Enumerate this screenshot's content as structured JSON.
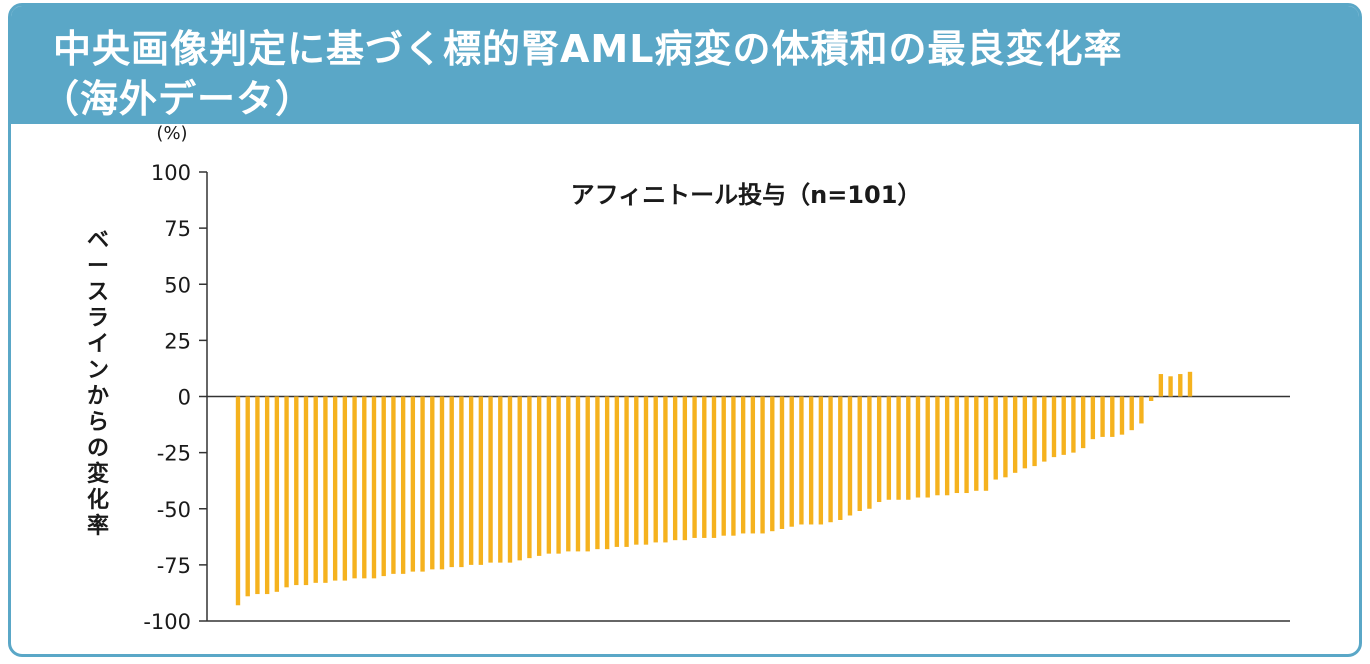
{
  "header": {
    "title_line1": "中央画像判定に基づく標的腎AML病変の体積和の最良変化率",
    "title_line2": "（海外データ）"
  },
  "colors": {
    "frame": "#5aa7c7",
    "bar": "#f5b21e",
    "axis": "#333333"
  },
  "chart_data": {
    "type": "bar",
    "title": "アフィニトール投与（n=101）",
    "ylabel": "ベースラインからの変化率",
    "yunit": "(%)",
    "ylim": [
      -100,
      100
    ],
    "yticks": [
      100,
      75,
      50,
      25,
      0,
      -25,
      -50,
      -75,
      -100
    ],
    "ytick_labels": [
      "100",
      "75",
      "50",
      "25",
      "0",
      "-25",
      "-50",
      "-75",
      "-100"
    ],
    "grid": false,
    "values": [
      -93,
      -89,
      -88,
      -88,
      -87,
      -85,
      -84,
      -84,
      -83,
      -83,
      -82,
      -82,
      -81,
      -81,
      -81,
      -80,
      -79,
      -79,
      -78,
      -78,
      -77,
      -77,
      -76,
      -76,
      -75,
      -75,
      -74,
      -74,
      -74,
      -73,
      -72,
      -71,
      -70,
      -70,
      -69,
      -69,
      -69,
      -68,
      -68,
      -67,
      -67,
      -66,
      -66,
      -65,
      -65,
      -64,
      -64,
      -63,
      -63,
      -63,
      -62,
      -62,
      -61,
      -61,
      -61,
      -60,
      -59,
      -58,
      -57,
      -57,
      -57,
      -56,
      -55,
      -53,
      -51,
      -50,
      -47,
      -46,
      -46,
      -46,
      -45,
      -45,
      -44,
      -44,
      -43,
      -43,
      -42,
      -42,
      -37,
      -36,
      -34,
      -32,
      -31,
      -29,
      -27,
      -26,
      -25,
      -23,
      -19,
      -18,
      -18,
      -17,
      -15,
      -12,
      -2,
      10,
      9,
      10,
      11
    ]
  }
}
